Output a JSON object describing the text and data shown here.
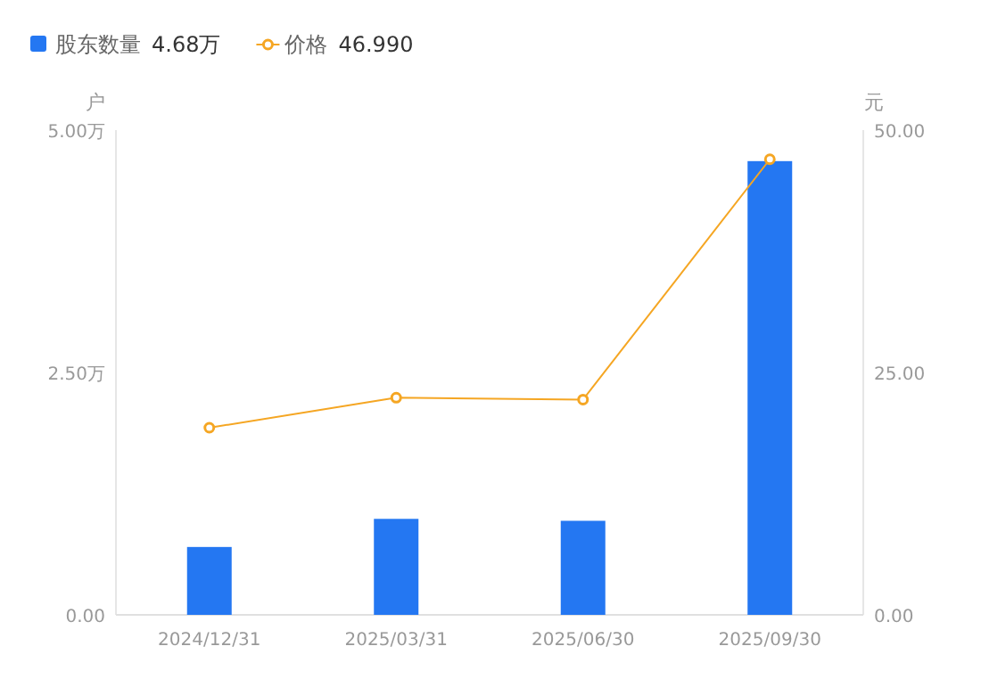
{
  "chart_data": {
    "type": "bar",
    "categories": [
      "2024/12/31",
      "2025/03/31",
      "2025/06/30",
      "2025/09/30"
    ],
    "series": [
      {
        "name": "股东数量",
        "color": "#2477f2",
        "values": [
          0.7,
          0.99,
          0.97,
          4.68
        ]
      },
      {
        "name": "价格",
        "type": "line",
        "axis": "y2",
        "color": "#f5a623",
        "marker": "circle",
        "values": [
          19.3,
          22.4,
          22.2,
          46.99
        ]
      }
    ],
    "ylabel": "户",
    "y2label": "元",
    "ylim": [
      0,
      5
    ],
    "yticks": [
      {
        "value": 0,
        "label": "0.00"
      },
      {
        "value": 2.5,
        "label": "2.50万"
      },
      {
        "value": 5,
        "label": "5.00万"
      }
    ],
    "y2lim": [
      0,
      50
    ],
    "y2ticks": [
      {
        "value": 0,
        "label": "0.00"
      },
      {
        "value": 25,
        "label": "25.00"
      },
      {
        "value": 50,
        "label": "50.00"
      }
    ],
    "annotations": [
      "4.68万",
      "46.990"
    ],
    "legend": "top left",
    "grid": false
  }
}
